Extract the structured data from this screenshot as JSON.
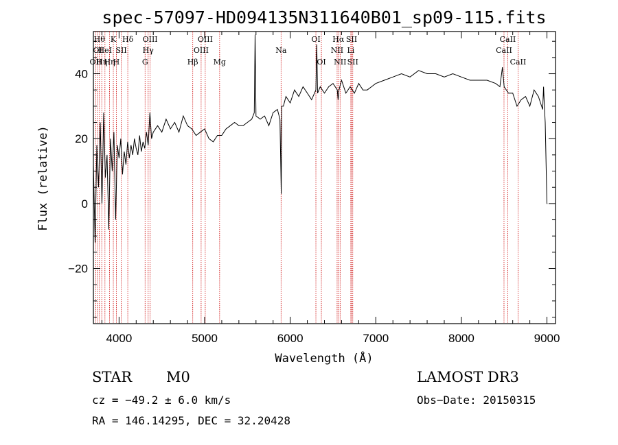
{
  "chart_data": {
    "type": "line",
    "title": "spec-57097-HD094135N311640B01_sp09-115.fits",
    "xlabel": "Wavelength (Å)",
    "ylabel": "Flux (relative)",
    "xlim": [
      3700,
      9100
    ],
    "ylim": [
      -37,
      53
    ],
    "xticks": [
      4000,
      5000,
      6000,
      7000,
      8000,
      9000
    ],
    "yticks": [
      -20,
      0,
      20,
      40
    ],
    "grid": false,
    "line_color": "#000000",
    "marker_color": "#cc0000",
    "series": [
      {
        "x": [
          3700,
          3720,
          3740,
          3760,
          3780,
          3800,
          3820,
          3840,
          3860,
          3880,
          3900,
          3920,
          3940,
          3960,
          3980,
          4000,
          4020,
          4040,
          4060,
          4080,
          4100,
          4120,
          4140,
          4160,
          4180,
          4200,
          4220,
          4240,
          4260,
          4280,
          4300,
          4320,
          4340,
          4360,
          4380,
          4400,
          4450,
          4500,
          4550,
          4600,
          4650,
          4700,
          4750,
          4800,
          4850,
          4900,
          4950,
          5000,
          5050,
          5100,
          5150,
          5200,
          5250,
          5300,
          5350,
          5400,
          5450,
          5500,
          5550,
          5580,
          5590,
          5600,
          5650,
          5700,
          5750,
          5800,
          5850,
          5880,
          5895,
          5900,
          5920,
          5950,
          6000,
          6050,
          6100,
          6150,
          6200,
          6250,
          6300,
          6310,
          6320,
          6350,
          6400,
          6450,
          6500,
          6550,
          6560,
          6570,
          6600,
          6650,
          6700,
          6750,
          6800,
          6850,
          6900,
          6950,
          7000,
          7100,
          7200,
          7300,
          7400,
          7500,
          7600,
          7700,
          7800,
          7900,
          8000,
          8100,
          8200,
          8300,
          8400,
          8450,
          8480,
          8500,
          8550,
          8600,
          8650,
          8700,
          8750,
          8800,
          8850,
          8900,
          8950,
          8960,
          8970,
          8980,
          9000,
          9005
        ],
        "y": [
          12,
          -12,
          18,
          5,
          25,
          0,
          28,
          8,
          15,
          -8,
          20,
          10,
          22,
          -5,
          18,
          14,
          20,
          9,
          16,
          12,
          19,
          14,
          18,
          15,
          20,
          17,
          15,
          21,
          16,
          19,
          17,
          22,
          18,
          28,
          20,
          22,
          24,
          22,
          26,
          23,
          25,
          22,
          27,
          24,
          23,
          21,
          22,
          23,
          20,
          19,
          21,
          21,
          23,
          24,
          25,
          24,
          24,
          25,
          26,
          28,
          52,
          27,
          26,
          27,
          24,
          28,
          29,
          26,
          3,
          30,
          30,
          33,
          31,
          35,
          33,
          36,
          34,
          32,
          35,
          49,
          34,
          36,
          34,
          36,
          37,
          35,
          32,
          35,
          38,
          34,
          36,
          34,
          37,
          35,
          35,
          36,
          37,
          38,
          39,
          40,
          39,
          41,
          40,
          40,
          39,
          40,
          39,
          38,
          38,
          38,
          37,
          36,
          42,
          36,
          34,
          34,
          30,
          32,
          33,
          30,
          35,
          33,
          29,
          36,
          30,
          25,
          0,
          0
        ]
      }
    ],
    "line_markers": [
      {
        "w": 3727,
        "label": "OII",
        "row": 3
      },
      {
        "w": 3750,
        "label": "OI",
        "row": 2
      },
      {
        "w": 3770,
        "label": "Hθ",
        "row": 1
      },
      {
        "w": 3798,
        "label": "Hη",
        "row": 3
      },
      {
        "w": 3835,
        "label": "HeI",
        "row": 2
      },
      {
        "w": 3889,
        "label": "Hη",
        "row": 3
      },
      {
        "w": 3933,
        "label": "K",
        "row": 1
      },
      {
        "w": 3968,
        "label": "H",
        "row": 3
      },
      {
        "w": 4026,
        "label": "SII",
        "row": 2
      },
      {
        "w": 4102,
        "label": "Hδ",
        "row": 1
      },
      {
        "w": 4304,
        "label": "G",
        "row": 3
      },
      {
        "w": 4340,
        "label": "Hγ",
        "row": 2
      },
      {
        "w": 4363,
        "label": "OIII",
        "row": 1
      },
      {
        "w": 4861,
        "label": "Hβ",
        "row": 3
      },
      {
        "w": 4959,
        "label": "OIII",
        "row": 2
      },
      {
        "w": 5007,
        "label": "OIII",
        "row": 1
      },
      {
        "w": 5175,
        "label": "Mg",
        "row": 3
      },
      {
        "w": 5893,
        "label": "Na",
        "row": 2
      },
      {
        "w": 6300,
        "label": "OI",
        "row": 1
      },
      {
        "w": 6364,
        "label": "OI",
        "row": 3
      },
      {
        "w": 6548,
        "label": "NII",
        "row": 2
      },
      {
        "w": 6563,
        "label": "Hα",
        "row": 1
      },
      {
        "w": 6583,
        "label": "NII",
        "row": 3
      },
      {
        "w": 6708,
        "label": "Li",
        "row": 2
      },
      {
        "w": 6717,
        "label": "SII",
        "row": 1
      },
      {
        "w": 6731,
        "label": "SII",
        "row": 3
      },
      {
        "w": 8498,
        "label": "CaII",
        "row": 2
      },
      {
        "w": 8542,
        "label": "CaII",
        "row": 1
      },
      {
        "w": 8662,
        "label": "CaII",
        "row": 3
      }
    ]
  },
  "info": {
    "class": "STAR",
    "subclass": "M0",
    "survey": "LAMOST DR3",
    "cz": "cz = −49.2 ± 6.0 km/s",
    "obs_date": "Obs−Date: 20150315",
    "radec": "RA = 146.14295, DEC =  32.20428"
  }
}
